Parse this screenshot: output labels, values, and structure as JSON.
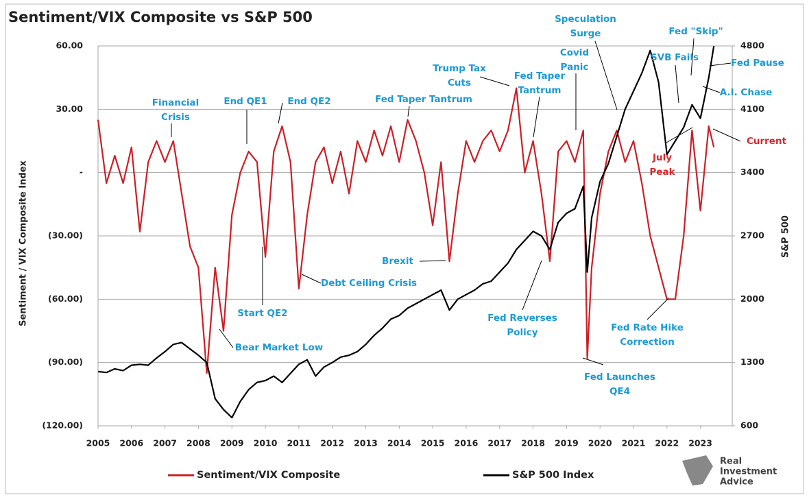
{
  "chart_data": {
    "type": "line",
    "title": "Sentiment/VIX Composite vs S&P 500",
    "y_label": "Sentiment / VIX Composite Index",
    "y2_label": "S&P 500",
    "xlim": [
      2005,
      2023.95
    ],
    "xticks": [
      2005,
      2006,
      2007,
      2008,
      2009,
      2010,
      2011,
      2012,
      2013,
      2014,
      2015,
      2016,
      2017,
      2018,
      2019,
      2020,
      2021,
      2022,
      2023
    ],
    "ylim": [
      -120,
      60
    ],
    "yticks": [
      {
        "value": -120,
        "label": "(120.00)"
      },
      {
        "value": -90,
        "label": "(90.00)"
      },
      {
        "value": -60,
        "label": "(60.00)"
      },
      {
        "value": -30,
        "label": "(30.00)"
      },
      {
        "value": 0,
        "label": "-"
      },
      {
        "value": 30,
        "label": "30.00"
      },
      {
        "value": 60,
        "label": "60.00"
      }
    ],
    "y2lim": [
      600,
      4800
    ],
    "y2ticks": [
      600,
      1300,
      2000,
      2700,
      3400,
      4100,
      4800
    ],
    "grid": true,
    "x": [
      2005,
      2005.25,
      2005.5,
      2005.75,
      2006,
      2006.25,
      2006.5,
      2006.75,
      2007,
      2007.25,
      2007.5,
      2007.75,
      2008,
      2008.25,
      2008.5,
      2008.75,
      2009,
      2009.25,
      2009.5,
      2009.75,
      2010,
      2010.25,
      2010.5,
      2010.75,
      2011,
      2011.25,
      2011.5,
      2011.75,
      2012,
      2012.25,
      2012.5,
      2012.75,
      2013,
      2013.25,
      2013.5,
      2013.75,
      2014,
      2014.25,
      2014.5,
      2014.75,
      2015,
      2015.25,
      2015.5,
      2015.75,
      2016,
      2016.25,
      2016.5,
      2016.75,
      2017,
      2017.25,
      2017.5,
      2017.75,
      2018,
      2018.25,
      2018.5,
      2018.75,
      2019,
      2019.25,
      2019.5,
      2019.62,
      2019.75,
      2020,
      2020.25,
      2020.5,
      2020.75,
      2021,
      2021.25,
      2021.5,
      2021.75,
      2022,
      2022.25,
      2022.5,
      2022.75,
      2023,
      2023.25,
      2023.4
    ],
    "series": [
      {
        "name": "Sentiment/VIX Composite",
        "color": "#cc1f26",
        "axis": "y",
        "values": [
          25,
          -5,
          8,
          -5,
          12,
          -28,
          5,
          15,
          5,
          15,
          -10,
          -35,
          -45,
          -95,
          -45,
          -75,
          -20,
          0,
          10,
          5,
          -40,
          10,
          22,
          5,
          -55,
          -20,
          5,
          12,
          -5,
          10,
          -10,
          15,
          5,
          20,
          8,
          22,
          5,
          25,
          15,
          0,
          -25,
          5,
          -42,
          -10,
          15,
          5,
          15,
          20,
          10,
          20,
          40,
          0,
          15,
          -10,
          -42,
          10,
          15,
          5,
          20,
          -88,
          -45,
          -10,
          10,
          20,
          5,
          15,
          -5,
          -30,
          -45,
          -60,
          -60,
          -30,
          20,
          -18,
          22,
          12
        ]
      },
      {
        "name": "S&P 500 Index",
        "color": "#000000",
        "axis": "y2",
        "values": [
          1200,
          1190,
          1230,
          1210,
          1270,
          1280,
          1270,
          1350,
          1420,
          1500,
          1520,
          1450,
          1380,
          1300,
          900,
          780,
          690,
          870,
          1000,
          1080,
          1100,
          1150,
          1080,
          1180,
          1280,
          1330,
          1150,
          1250,
          1300,
          1360,
          1380,
          1420,
          1500,
          1600,
          1680,
          1780,
          1820,
          1900,
          1950,
          2000,
          2050,
          2100,
          1880,
          2000,
          2050,
          2100,
          2170,
          2200,
          2300,
          2400,
          2550,
          2650,
          2750,
          2700,
          2550,
          2850,
          2950,
          3000,
          3250,
          2300,
          2900,
          3300,
          3500,
          3800,
          4100,
          4300,
          4500,
          4750,
          4400,
          3600,
          3750,
          3900,
          4150,
          4000,
          4450,
          4800
        ]
      }
    ],
    "annotations": [
      [
        "Financial",
        "Crisis"
      ],
      [
        "End QE1"
      ],
      [
        "End QE2"
      ],
      [
        "Fed Taper Tantrum"
      ],
      [
        "Trump Tax",
        "Cuts"
      ],
      [
        "Fed Taper",
        "Tantrum"
      ],
      [
        "Speculation",
        "Surge"
      ],
      [
        "Covid",
        "Panic"
      ],
      [
        "Fed \"Skip\""
      ],
      [
        "SVB Fails"
      ],
      [
        "Fed Pause"
      ],
      [
        "A.I. Chase"
      ],
      [
        "Current"
      ],
      [
        "July",
        "Peak"
      ],
      [
        "Brexit"
      ],
      [
        "Debt Ceiling Crisis"
      ],
      [
        "Start QE2"
      ],
      [
        "Bear Market Low"
      ],
      [
        "Fed Reverses",
        "Policy"
      ],
      [
        "Fed Rate Hike",
        "Correction"
      ],
      [
        "Fed Launches",
        "QE4"
      ]
    ],
    "logo": [
      "Real",
      "Investment",
      "Advice"
    ]
  }
}
